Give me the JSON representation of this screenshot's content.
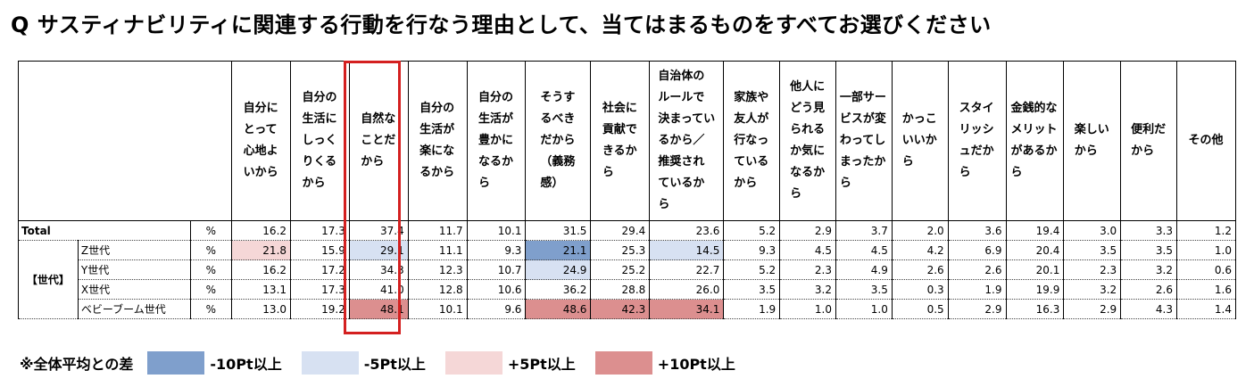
{
  "title": "Q サスティナビリティに関連する行動を行なう理由として、当てはまるものをすべてお選びください",
  "chart_data": {
    "type": "table",
    "unit": "%",
    "columns": [
      "自分にとって心地よいから",
      "自分の生活にしっくりくるから",
      "自然なことだから",
      "自分の生活が楽になるから",
      "自分の生活が豊かになるから",
      "そうするべきだから（義務感）",
      "社会に貢献できるから",
      "自治体のルールで決まっているから／推奨されているから",
      "家族や友人が行なっているから",
      "他人にどう見られるか気になるから",
      "一部サービスが変わってしまったから",
      "かっこいいから",
      "スタイリッシュだから",
      "金銭的なメリットがあるから",
      "楽しいから",
      "便利だから",
      "その他"
    ],
    "group_label": "【世代】",
    "rows": [
      {
        "label": "Total",
        "unit": "%",
        "values": [
          16.2,
          17.3,
          37.4,
          11.7,
          10.1,
          31.5,
          29.4,
          23.6,
          5.2,
          2.9,
          3.7,
          2.0,
          3.6,
          19.4,
          3.0,
          3.3,
          1.2
        ]
      },
      {
        "label": "Z世代",
        "unit": "%",
        "values": [
          21.8,
          15.9,
          29.1,
          11.1,
          9.3,
          21.1,
          25.3,
          14.5,
          9.3,
          4.5,
          4.5,
          4.2,
          6.9,
          20.4,
          3.5,
          3.5,
          1.0
        ]
      },
      {
        "label": "Y世代",
        "unit": "%",
        "values": [
          16.2,
          17.2,
          34.3,
          12.3,
          10.7,
          24.9,
          25.2,
          22.7,
          5.2,
          2.3,
          4.9,
          2.6,
          2.6,
          20.1,
          2.3,
          3.2,
          0.6
        ]
      },
      {
        "label": "X世代",
        "unit": "%",
        "values": [
          13.1,
          17.3,
          41.0,
          12.8,
          10.6,
          36.2,
          28.8,
          26.0,
          3.5,
          3.2,
          3.5,
          0.3,
          1.9,
          19.9,
          3.2,
          2.6,
          1.6
        ]
      },
      {
        "label": "ベビーブーム世代",
        "unit": "%",
        "values": [
          13.0,
          19.2,
          48.1,
          10.1,
          9.6,
          48.6,
          42.3,
          34.1,
          1.9,
          1.0,
          1.0,
          0.5,
          2.9,
          16.3,
          2.9,
          4.3,
          1.4
        ]
      }
    ],
    "highlighted_column": "自然なことだから",
    "legend": {
      "note": "※全体平均との差",
      "items": [
        {
          "label": "-10Pt以上",
          "color": "#7f9fcc"
        },
        {
          "label": "-5Pt以上",
          "color": "#d7e1f2"
        },
        {
          "label": "+5Pt以上",
          "color": "#f5d7d7"
        },
        {
          "label": "+10Pt以上",
          "color": "#dc8f8f"
        }
      ]
    }
  }
}
